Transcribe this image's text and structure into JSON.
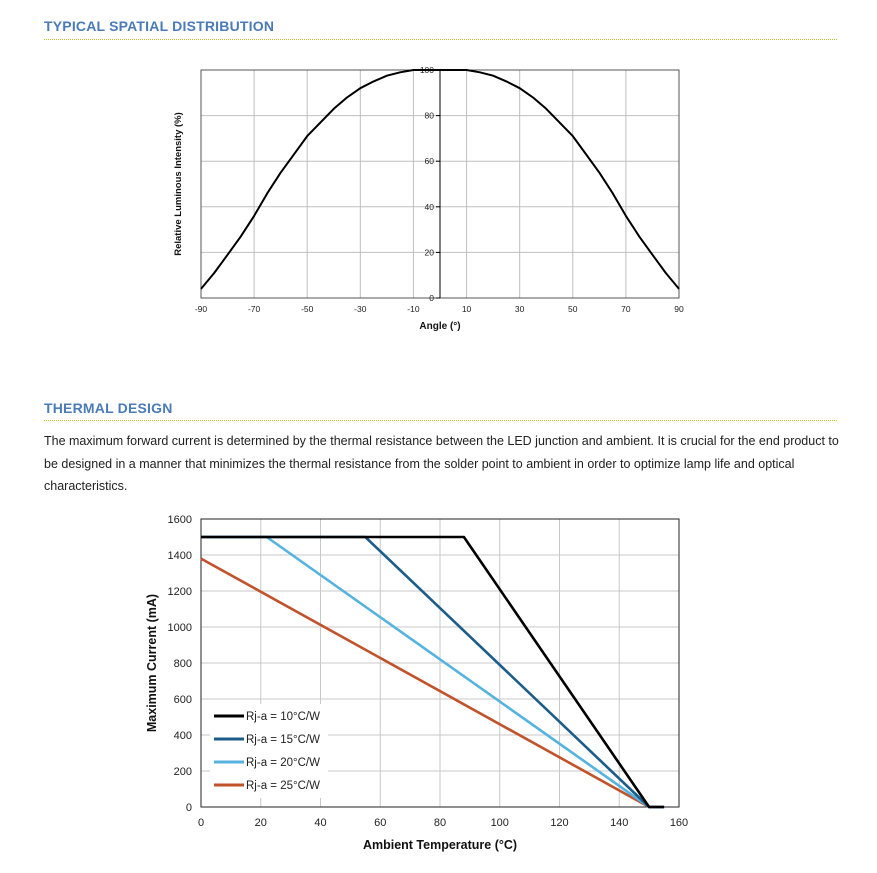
{
  "sections": {
    "spatial_title": "TYPICAL SPATIAL DISTRIBUTION",
    "thermal_title": "THERMAL DESIGN",
    "thermal_paragraph": "The maximum forward current is determined by the thermal resistance between the LED junction and ambient. It is crucial for the end product to be designed in a manner that minimizes the thermal resistance from the solder point to ambient in order to optimize lamp life and optical characteristics."
  },
  "chart_data": [
    {
      "type": "line",
      "title": "",
      "xlabel": "Angle (°)",
      "ylabel": "Relative Luminous Intensity (%)",
      "xlim": [
        -90,
        90
      ],
      "ylim": [
        0,
        100
      ],
      "x_ticks": [
        -90,
        -70,
        -50,
        -30,
        -10,
        10,
        30,
        50,
        70,
        90
      ],
      "y_ticks": [
        0,
        20,
        40,
        60,
        80,
        100
      ],
      "grid": true,
      "series": [
        {
          "color": "#000000",
          "x": [
            -90,
            -85,
            -80,
            -75,
            -70,
            -65,
            -60,
            -55,
            -50,
            -45,
            -40,
            -35,
            -30,
            -25,
            -20,
            -15,
            -10,
            -5,
            0,
            5,
            10,
            15,
            20,
            25,
            30,
            35,
            40,
            45,
            50,
            55,
            60,
            65,
            70,
            75,
            80,
            85,
            90
          ],
          "y": [
            4,
            11,
            19,
            27,
            36,
            46,
            55,
            63,
            71,
            77,
            83,
            88,
            92,
            95,
            97.5,
            99,
            100,
            100,
            100,
            100,
            100,
            99,
            97.5,
            95,
            92,
            88,
            83,
            77,
            71,
            63,
            55,
            46,
            36,
            27,
            19,
            11,
            4
          ]
        }
      ]
    },
    {
      "type": "line",
      "title": "",
      "xlabel": "Ambient Temperature (°C)",
      "ylabel": "Maximum Current (mA)",
      "xlim": [
        0,
        160
      ],
      "ylim": [
        0,
        1600
      ],
      "x_ticks": [
        0,
        20,
        40,
        60,
        80,
        100,
        120,
        140,
        160
      ],
      "y_ticks": [
        0,
        200,
        400,
        600,
        800,
        1000,
        1200,
        1400,
        1600
      ],
      "grid": true,
      "legend": "bottom-left",
      "series": [
        {
          "name": "Rj-a = 10°C/W",
          "color": "#000000",
          "x": [
            0,
            87,
            88,
            150,
            155
          ],
          "y": [
            1500,
            1500,
            1500,
            0,
            0
          ]
        },
        {
          "name": "Rj-a = 15°C/W",
          "color": "#1b5c8a",
          "x": [
            0,
            55,
            150,
            155
          ],
          "y": [
            1500,
            1500,
            0,
            0
          ]
        },
        {
          "name": "Rj-a = 20°C/W",
          "color": "#55b3e0",
          "x": [
            0,
            22,
            150,
            155
          ],
          "y": [
            1500,
            1500,
            0,
            0
          ]
        },
        {
          "name": "Rj-a = 25°C/W",
          "color": "#c2522a",
          "x": [
            0,
            150,
            155
          ],
          "y": [
            1380,
            0,
            0
          ]
        }
      ]
    }
  ]
}
